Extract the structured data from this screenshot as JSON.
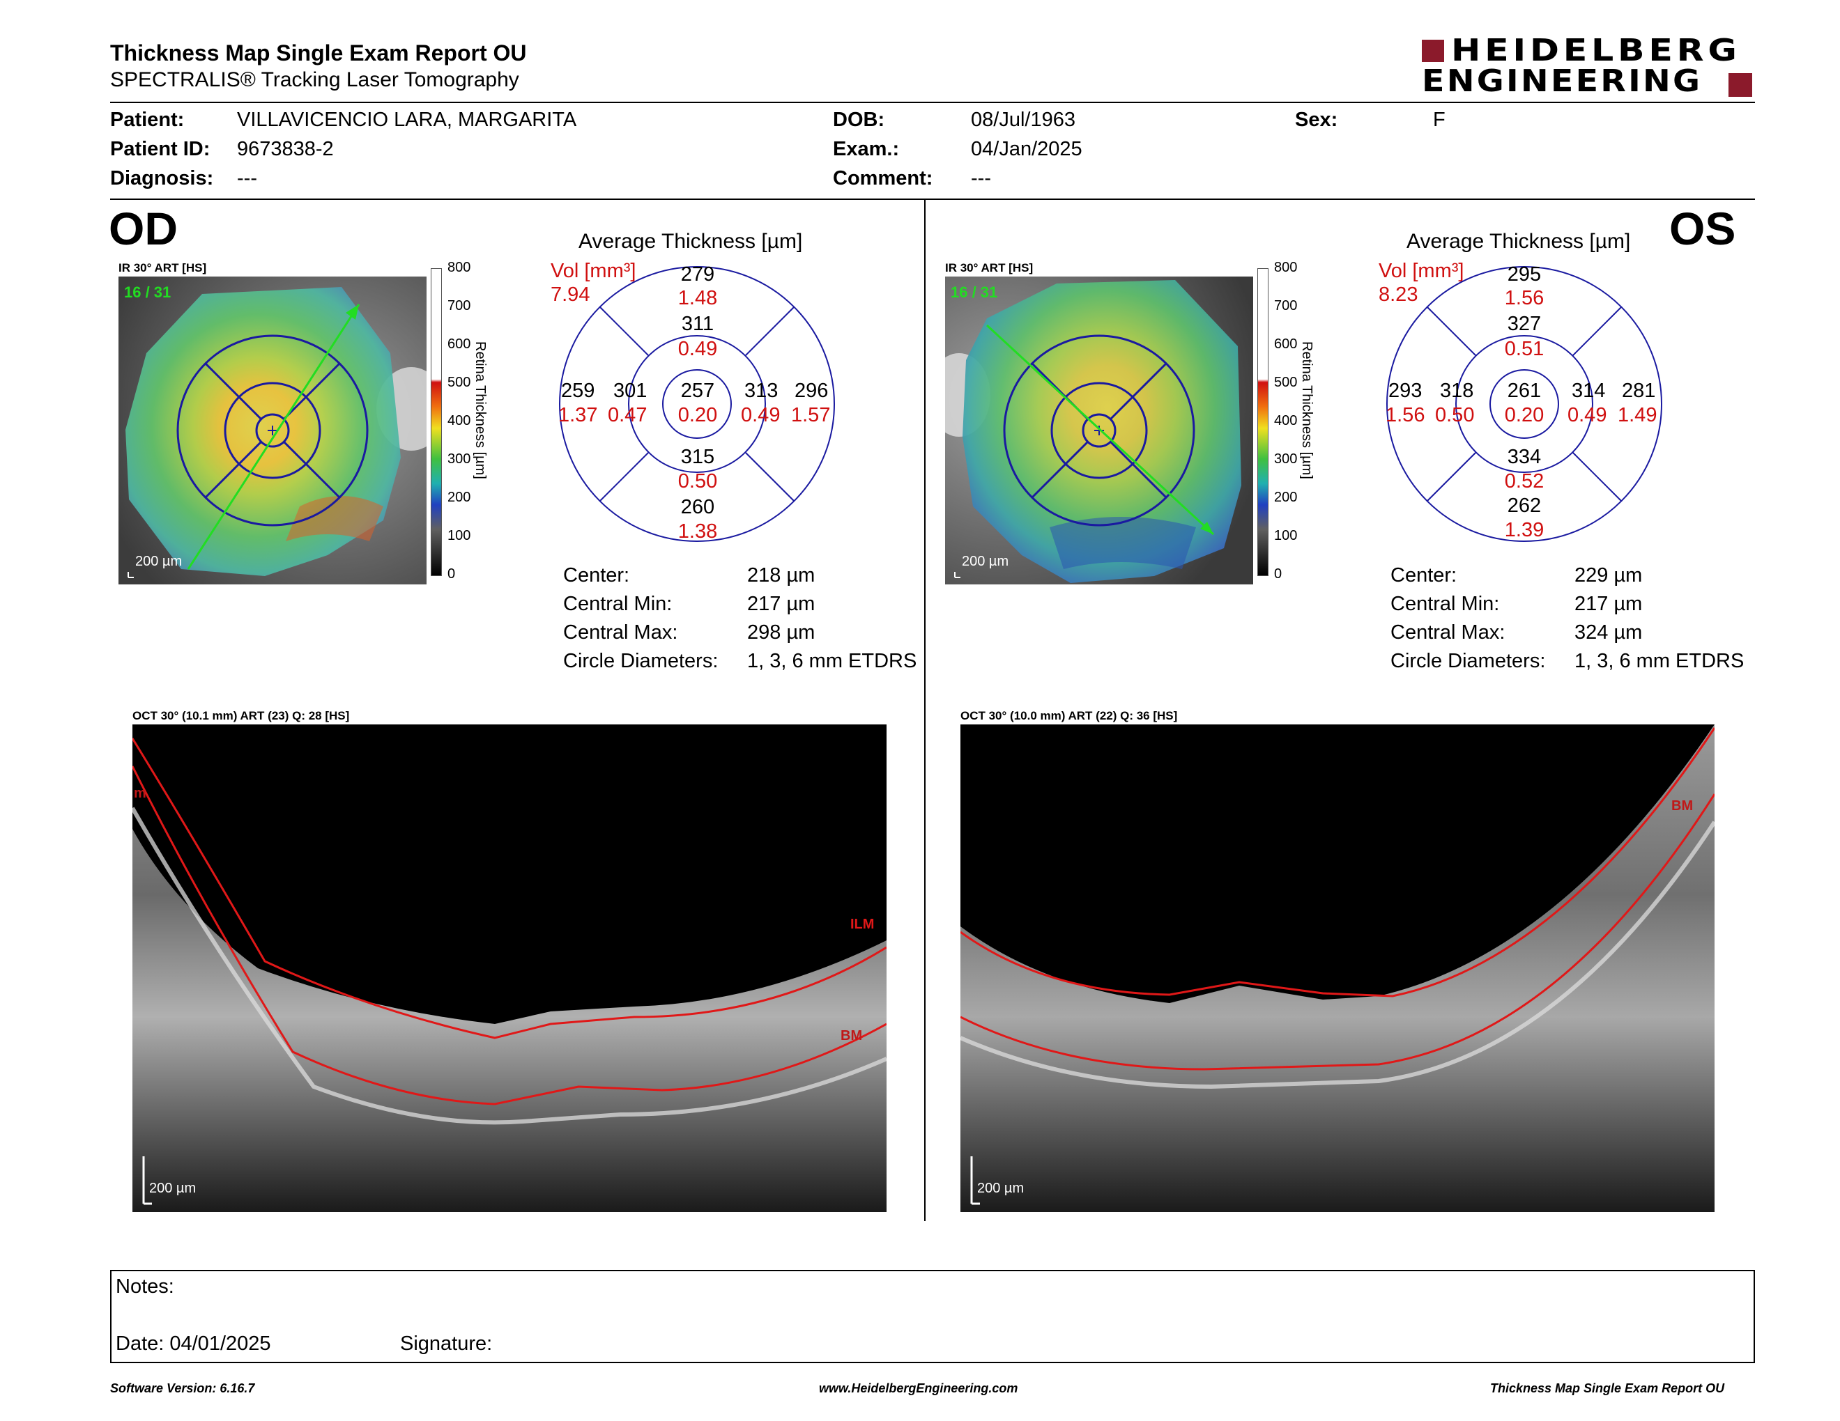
{
  "header": {
    "title": "Thickness Map Single Exam Report OU",
    "subtitle": "SPECTRALIS® Tracking Laser Tomography",
    "logo_line1": "HEIDELBERG",
    "logo_line2": "ENGINEERING",
    "brand_color": "#8b1a2b"
  },
  "patient": {
    "patient_label": "Patient:",
    "patient_value": "VILLAVICENCIO LARA, MARGARITA",
    "id_label": "Patient ID:",
    "id_value": "9673838-2",
    "diagnosis_label": "Diagnosis:",
    "diagnosis_value": "---",
    "dob_label": "DOB:",
    "dob_value": "08/Jul/1963",
    "exam_label": "Exam.:",
    "exam_value": "04/Jan/2025",
    "comment_label": "Comment:",
    "comment_value": "---",
    "sex_label": "Sex:",
    "sex_value": "F"
  },
  "od": {
    "eye": "OD",
    "ir_label": "IR 30° ART [HS]",
    "frames": "16 / 31",
    "scale": "200 µm",
    "colorbar_ticks": [
      "800",
      "700",
      "600",
      "500",
      "400",
      "300",
      "200",
      "100",
      "0"
    ],
    "colorbar_title": "Retina Thickness [µm]",
    "etdrs_title": "Average Thickness [µm]",
    "vol_label": "Vol [mm³]",
    "vol_total": "7.94",
    "sectors": {
      "outer_top": {
        "t": "279",
        "v": "1.48"
      },
      "inner_top": {
        "t": "311",
        "v": "0.49"
      },
      "outer_left": {
        "t": "259",
        "v": "1.37"
      },
      "inner_left": {
        "t": "301",
        "v": "0.47"
      },
      "center": {
        "t": "257",
        "v": "0.20"
      },
      "inner_right": {
        "t": "313",
        "v": "0.49"
      },
      "outer_right": {
        "t": "296",
        "v": "1.57"
      },
      "inner_bottom": {
        "t": "315",
        "v": "0.50"
      },
      "outer_bottom": {
        "t": "260",
        "v": "1.38"
      }
    },
    "stats": {
      "center_label": "Center:",
      "center_value": "218 µm",
      "min_label": "Central Min:",
      "min_value": "217 µm",
      "max_label": "Central Max:",
      "max_value": "298 µm",
      "diam_label": "Circle Diameters:",
      "diam_value": "1, 3, 6 mm ETDRS"
    },
    "oct_label": "OCT 30° (10.1 mm) ART (23) Q: 28 [HS]",
    "oct_scale": "200 µm",
    "layer_ilm": "ILM",
    "layer_bm": "BM",
    "layer_left_edge": "m"
  },
  "os": {
    "eye": "OS",
    "ir_label": "IR 30° ART [HS]",
    "frames": "16 / 31",
    "scale": "200 µm",
    "colorbar_ticks": [
      "800",
      "700",
      "600",
      "500",
      "400",
      "300",
      "200",
      "100",
      "0"
    ],
    "colorbar_title": "Retina Thickness [µm]",
    "etdrs_title": "Average Thickness [µm]",
    "vol_label": "Vol [mm³]",
    "vol_total": "8.23",
    "sectors": {
      "outer_top": {
        "t": "295",
        "v": "1.56"
      },
      "inner_top": {
        "t": "327",
        "v": "0.51"
      },
      "outer_left": {
        "t": "293",
        "v": "1.56"
      },
      "inner_left": {
        "t": "318",
        "v": "0.50"
      },
      "center": {
        "t": "261",
        "v": "0.20"
      },
      "inner_right": {
        "t": "314",
        "v": "0.49"
      },
      "outer_right": {
        "t": "281",
        "v": "1.49"
      },
      "inner_bottom": {
        "t": "334",
        "v": "0.52"
      },
      "outer_bottom": {
        "t": "262",
        "v": "1.39"
      }
    },
    "stats": {
      "center_label": "Center:",
      "center_value": "229 µm",
      "min_label": "Central Min:",
      "min_value": "217 µm",
      "max_label": "Central Max:",
      "max_value": "324 µm",
      "diam_label": "Circle Diameters:",
      "diam_value": "1, 3, 6 mm ETDRS"
    },
    "oct_label": "OCT 30° (10.0 mm) ART (22) Q: 36 [HS]",
    "oct_scale": "200 µm",
    "layer_bm": "BM"
  },
  "notes": {
    "notes_label": "Notes:",
    "date_label": "Date: 04/01/2025",
    "signature_label": "Signature:"
  },
  "footer": {
    "software": "Software Version: 6.16.7",
    "website": "www.HeidelbergEngineering.com",
    "report": "Thickness Map Single Exam Report OU"
  },
  "colors": {
    "sector_value_red": "#d01010",
    "etdrs_blue": "#1a1aa0",
    "trace_red": "#e01818",
    "frames_green": "#22dd22"
  }
}
